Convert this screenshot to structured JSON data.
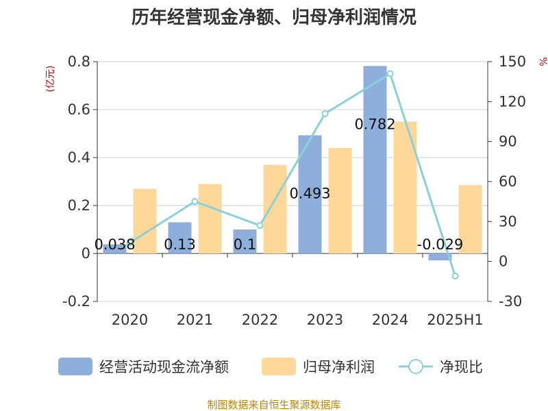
{
  "title": "历年经营现金净额、归母净利润情况",
  "source": "制图数据来自恒生聚源数据库",
  "colors": {
    "cash_flow": "#8eafdc",
    "net_profit": "#ffd899",
    "ratio": "#88d1d8",
    "unit_text": "#cc0000",
    "source_text": "#b8860b"
  },
  "chart_data": {
    "type": "bar",
    "title": "历年经营现金净额、归母净利润情况",
    "categories": [
      "2020",
      "2021",
      "2022",
      "2023",
      "2024",
      "2025H1"
    ],
    "left_axis": {
      "unit": "(亿元)",
      "range": [
        -0.2,
        0.8
      ],
      "ticks": [
        "0.8",
        "0.6",
        "0.4",
        "0.2",
        "0",
        "-0.2"
      ],
      "tick_values": [
        0.8,
        0.6,
        0.4,
        0.2,
        0,
        -0.2
      ]
    },
    "right_axis": {
      "unit": "%",
      "range": [
        -30,
        150
      ],
      "ticks": [
        "150",
        "120",
        "90",
        "60",
        "30",
        "0",
        "-30"
      ],
      "tick_values": [
        150,
        120,
        90,
        60,
        30,
        0,
        -30
      ]
    },
    "grid": true,
    "legend_position": "bottom",
    "series": [
      {
        "name": "经营活动现金流净额",
        "type": "bar",
        "axis": "left",
        "values": [
          0.038,
          0.13,
          0.1,
          0.493,
          0.782,
          -0.029
        ],
        "labels": [
          "0.038",
          "0.13",
          "0.1",
          "0.493",
          "0.782",
          "-0.029"
        ]
      },
      {
        "name": "归母净利润",
        "type": "bar",
        "axis": "left",
        "values": [
          0.27,
          0.29,
          0.37,
          0.44,
          0.55,
          0.285
        ]
      },
      {
        "name": "净现比",
        "type": "line",
        "axis": "right",
        "values": [
          14,
          45,
          27,
          111,
          141,
          -11
        ]
      }
    ]
  }
}
